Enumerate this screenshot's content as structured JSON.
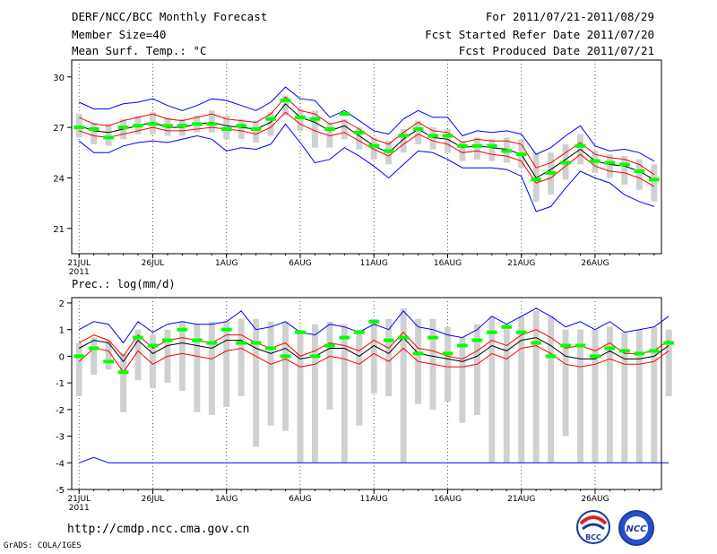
{
  "header": {
    "title": "DERF/NCC/BCC Monthly Forecast",
    "member_size": "Member Size=40",
    "variable": "Mean Surf. Temp.: °C",
    "forecast_period": "For 2011/07/21-2011/08/29",
    "fcst_started": "Fcst Started Refer Date 2011/07/20",
    "fcst_produced": "Fcst Produced Date 2011/07/21"
  },
  "lower_title": "Prec.: log(mm/d)",
  "footer": {
    "url": "http://cmdp.ncc.cma.gov.cn",
    "grads": "GrADS: COLA/IGES",
    "logo_left_text": "BCC",
    "logo_right_text": "NCC"
  },
  "colors": {
    "envelope": "#0000ff",
    "inner": "#ff0000",
    "mean": "#000000",
    "observed": "#00ff00",
    "bars": "#d0d0d0"
  },
  "chart_data": [
    {
      "type": "line",
      "title": "Mean Surf. Temp.: °C",
      "ylim": [
        19.5,
        31
      ],
      "yticks": [
        21,
        24,
        27,
        30
      ],
      "xlim": [
        0.5,
        40.5
      ],
      "xticks": [
        1,
        6,
        11,
        16,
        21,
        26,
        31,
        36
      ],
      "xtick_labels": [
        "21JUL",
        "26JUL",
        "1AUG",
        "6AUG",
        "11AUG",
        "16AUG",
        "21AUG",
        "26AUG"
      ],
      "xtick_sublabel": "2011",
      "grid": "dotted-vertical",
      "series": [
        {
          "name": "max",
          "color": "#0000ff",
          "values": [
            28.5,
            28.1,
            28.1,
            28.4,
            28.5,
            28.7,
            28.3,
            28.0,
            28.3,
            28.7,
            28.6,
            28.3,
            28.0,
            28.5,
            29.4,
            28.7,
            28.6,
            27.6,
            28.0,
            27.4,
            26.8,
            26.6,
            27.5,
            28.0,
            27.6,
            27.6,
            26.5,
            26.8,
            26.7,
            26.8,
            26.6,
            25.4,
            25.8,
            26.5,
            27.1,
            25.9,
            25.6,
            25.7,
            25.5,
            25.0
          ]
        },
        {
          "name": "upper",
          "color": "#ff0000",
          "values": [
            27.6,
            27.2,
            27.1,
            27.4,
            27.6,
            27.8,
            27.5,
            27.4,
            27.6,
            27.8,
            27.5,
            27.4,
            27.3,
            27.8,
            28.8,
            28.0,
            27.8,
            27.2,
            27.4,
            26.9,
            26.3,
            26.0,
            26.7,
            27.3,
            26.8,
            26.7,
            26.1,
            26.3,
            26.2,
            26.2,
            26.0,
            24.6,
            24.9,
            25.5,
            26.1,
            25.4,
            25.2,
            25.1,
            24.8,
            24.2
          ]
        },
        {
          "name": "mean",
          "color": "#000000",
          "values": [
            27.1,
            26.8,
            26.7,
            26.9,
            27.1,
            27.3,
            27.0,
            27.0,
            27.2,
            27.3,
            27.1,
            27.0,
            26.9,
            27.3,
            28.4,
            27.6,
            27.3,
            26.8,
            27.1,
            26.5,
            25.9,
            25.5,
            26.3,
            26.9,
            26.4,
            26.3,
            25.8,
            25.9,
            25.8,
            25.7,
            25.4,
            24.0,
            24.5,
            25.1,
            25.7,
            25.0,
            24.8,
            24.7,
            24.4,
            23.9
          ]
        },
        {
          "name": "lower",
          "color": "#ff0000",
          "values": [
            26.8,
            26.5,
            26.4,
            26.6,
            26.8,
            27.0,
            26.8,
            26.8,
            26.9,
            27.0,
            26.9,
            26.8,
            26.6,
            27.0,
            27.9,
            27.2,
            26.8,
            26.5,
            26.7,
            26.2,
            25.7,
            25.3,
            26.0,
            26.6,
            26.2,
            26.0,
            25.5,
            25.6,
            25.4,
            25.3,
            25.0,
            23.7,
            24.0,
            24.7,
            25.4,
            24.7,
            24.4,
            24.3,
            24.0,
            23.5
          ]
        },
        {
          "name": "min",
          "color": "#0000ff",
          "values": [
            26.2,
            25.5,
            25.5,
            25.9,
            26.1,
            26.2,
            26.1,
            26.3,
            26.5,
            26.3,
            25.6,
            25.8,
            25.7,
            26.0,
            27.2,
            26.1,
            24.9,
            25.1,
            25.8,
            25.3,
            24.7,
            24.0,
            24.8,
            25.6,
            25.5,
            25.1,
            24.6,
            24.6,
            24.6,
            24.5,
            24.1,
            22.0,
            22.3,
            23.4,
            24.4,
            24.0,
            23.7,
            23.0,
            22.6,
            22.3
          ]
        },
        {
          "name": "bar_top",
          "color": "#d0d0d0",
          "values": [
            27.8,
            27.3,
            27.2,
            27.5,
            27.7,
            27.9,
            27.6,
            27.5,
            27.7,
            28.0,
            27.7,
            27.5,
            27.4,
            27.9,
            28.9,
            28.1,
            28.0,
            27.3,
            27.5,
            27.0,
            26.4,
            26.2,
            26.9,
            27.4,
            27.0,
            26.9,
            26.2,
            26.4,
            26.3,
            26.4,
            26.3,
            25.5,
            25.5,
            26.0,
            26.6,
            25.6,
            25.4,
            25.3,
            25.1,
            24.8
          ]
        },
        {
          "name": "bar_bottom",
          "color": "#d0d0d0",
          "values": [
            26.4,
            26.0,
            25.9,
            26.3,
            26.6,
            26.6,
            26.5,
            26.5,
            26.7,
            26.7,
            26.3,
            26.3,
            26.1,
            26.5,
            27.7,
            26.8,
            25.8,
            25.8,
            26.3,
            25.7,
            25.1,
            24.8,
            25.5,
            26.0,
            25.7,
            25.5,
            25.0,
            25.1,
            25.0,
            24.9,
            24.6,
            22.6,
            23.0,
            23.9,
            24.8,
            24.3,
            24.0,
            23.6,
            23.3,
            22.6
          ]
        },
        {
          "name": "observed",
          "color": "#00ff00",
          "values": [
            27.0,
            26.9,
            26.4,
            27.0,
            27.1,
            27.2,
            27.1,
            27.1,
            27.2,
            27.2,
            26.9,
            27.1,
            26.9,
            27.5,
            28.6,
            27.6,
            27.5,
            26.9,
            27.8,
            26.7,
            25.9,
            25.6,
            26.5,
            26.9,
            26.5,
            26.5,
            25.9,
            25.9,
            25.9,
            25.6,
            25.4,
            23.9,
            24.3,
            24.9,
            25.9,
            25.0,
            24.9,
            24.8,
            24.4,
            23.9
          ]
        }
      ]
    },
    {
      "type": "line",
      "title": "Prec.: log(mm/d)",
      "ylim": [
        -5,
        2.2
      ],
      "yticks": [
        -5,
        -4,
        -3,
        -2,
        -1,
        0,
        1,
        2
      ],
      "xlim": [
        0.5,
        40.5
      ],
      "xticks": [
        1,
        6,
        11,
        16,
        21,
        26,
        31,
        36
      ],
      "xtick_labels": [
        "21JUL",
        "26JUL",
        "1AUG",
        "6AUG",
        "11AUG",
        "16AUG",
        "21AUG",
        "26AUG"
      ],
      "xtick_sublabel": "2011",
      "grid": "dotted-vertical",
      "series": [
        {
          "name": "max",
          "color": "#0000ff",
          "values": [
            1.0,
            1.3,
            1.2,
            0.5,
            1.3,
            0.9,
            1.2,
            1.3,
            1.2,
            1.2,
            1.3,
            1.7,
            1.0,
            1.1,
            1.3,
            0.9,
            0.8,
            1.2,
            1.1,
            0.9,
            1.2,
            1.0,
            1.7,
            1.1,
            1.0,
            0.8,
            0.7,
            1.0,
            1.5,
            1.2,
            1.5,
            1.8,
            1.5,
            1.1,
            1.3,
            1.0,
            1.3,
            0.9,
            1.0,
            1.1,
            1.5
          ]
        },
        {
          "name": "upper",
          "color": "#ff0000",
          "values": [
            0.5,
            0.8,
            0.6,
            0.0,
            0.8,
            0.3,
            0.6,
            0.7,
            0.6,
            0.5,
            0.8,
            0.8,
            0.5,
            0.3,
            0.5,
            0.0,
            0.2,
            0.5,
            0.4,
            0.2,
            0.6,
            0.3,
            0.9,
            0.3,
            0.2,
            0.0,
            -0.1,
            0.2,
            0.6,
            0.4,
            0.8,
            1.0,
            0.7,
            0.3,
            0.4,
            0.2,
            0.5,
            0.1,
            0.1,
            0.2,
            0.6
          ]
        },
        {
          "name": "mean",
          "color": "#000000",
          "values": [
            0.3,
            0.6,
            0.5,
            -0.2,
            0.6,
            0.1,
            0.4,
            0.5,
            0.4,
            0.3,
            0.6,
            0.6,
            0.3,
            0.1,
            0.3,
            -0.1,
            0.0,
            0.3,
            0.3,
            0.0,
            0.4,
            0.1,
            0.7,
            0.1,
            0.0,
            -0.1,
            -0.2,
            0.0,
            0.4,
            0.2,
            0.6,
            0.7,
            0.4,
            0.0,
            -0.1,
            -0.1,
            0.2,
            -0.1,
            -0.1,
            0.0,
            0.4
          ]
        },
        {
          "name": "lower",
          "color": "#ff0000",
          "values": [
            -0.2,
            0.3,
            0.2,
            -0.6,
            0.2,
            -0.3,
            0.0,
            0.1,
            0.0,
            -0.1,
            0.2,
            0.3,
            0.0,
            -0.3,
            -0.1,
            -0.4,
            -0.3,
            0.0,
            -0.1,
            -0.3,
            0.1,
            -0.2,
            0.3,
            -0.2,
            -0.3,
            -0.4,
            -0.4,
            -0.3,
            0.1,
            -0.1,
            0.3,
            0.4,
            0.1,
            -0.3,
            -0.4,
            -0.3,
            -0.1,
            -0.3,
            -0.3,
            -0.2,
            0.2
          ]
        },
        {
          "name": "min",
          "color": "#0000ff",
          "values": [
            -4.0,
            -3.8,
            -4.0,
            -4.0,
            -4.0,
            -4.0,
            -4.0,
            -4.0,
            -4.0,
            -4.0,
            -4.0,
            -4.0,
            -4.0,
            -4.0,
            -4.0,
            -4.0,
            -4.0,
            -4.0,
            -4.0,
            -4.0,
            -4.0,
            -4.0,
            -4.0,
            -4.0,
            -4.0,
            -4.0,
            -4.0,
            -4.0,
            -4.0,
            -4.0,
            -4.0,
            -4.0,
            -4.0,
            -4.0,
            -4.0,
            -4.0,
            -4.0,
            -4.0,
            -4.0,
            -4.0,
            -4.0
          ]
        },
        {
          "name": "bar_top",
          "color": "#d0d0d0",
          "values": [
            0.5,
            0.7,
            0.6,
            0.1,
            1.0,
            0.8,
            1.0,
            1.3,
            1.2,
            1.3,
            1.3,
            1.4,
            1.4,
            1.3,
            1.3,
            0.9,
            1.2,
            1.3,
            1.2,
            1.0,
            1.4,
            1.4,
            1.8,
            1.4,
            1.4,
            1.1,
            0.7,
            1.2,
            1.5,
            1.2,
            1.5,
            1.7,
            1.5,
            1.0,
            1.0,
            1.0,
            1.1,
            0.9,
            1.0,
            1.1,
            1.0
          ]
        },
        {
          "name": "bar_bottom",
          "color": "#d0d0d0",
          "values": [
            -1.5,
            -0.7,
            -0.5,
            -2.1,
            -0.9,
            -1.2,
            -1.0,
            -1.3,
            -2.1,
            -2.2,
            -1.9,
            -1.5,
            -3.4,
            -2.6,
            -2.8,
            -4.0,
            -4.0,
            -2.0,
            -4.0,
            -2.6,
            -1.4,
            -1.5,
            -4.0,
            -1.8,
            -2.0,
            -1.7,
            -2.5,
            -2.2,
            -4.0,
            -4.0,
            -4.0,
            -4.0,
            -4.0,
            -3.0,
            -4.0,
            -4.0,
            -4.0,
            -4.0,
            -4.0,
            -4.0,
            -1.5
          ]
        },
        {
          "name": "observed",
          "color": "#00ff00",
          "values": [
            0.0,
            0.3,
            -0.2,
            -0.6,
            0.7,
            0.4,
            0.6,
            1.0,
            0.6,
            0.5,
            1.0,
            0.5,
            0.5,
            0.3,
            0.0,
            0.9,
            0.0,
            0.4,
            0.7,
            0.9,
            1.3,
            0.6,
            0.7,
            0.1,
            0.7,
            0.1,
            0.4,
            0.6,
            0.9,
            1.1,
            0.9,
            0.5,
            0.0,
            0.4,
            0.4,
            0.0,
            0.3,
            0.2,
            0.1,
            0.2,
            0.5
          ]
        }
      ]
    }
  ]
}
